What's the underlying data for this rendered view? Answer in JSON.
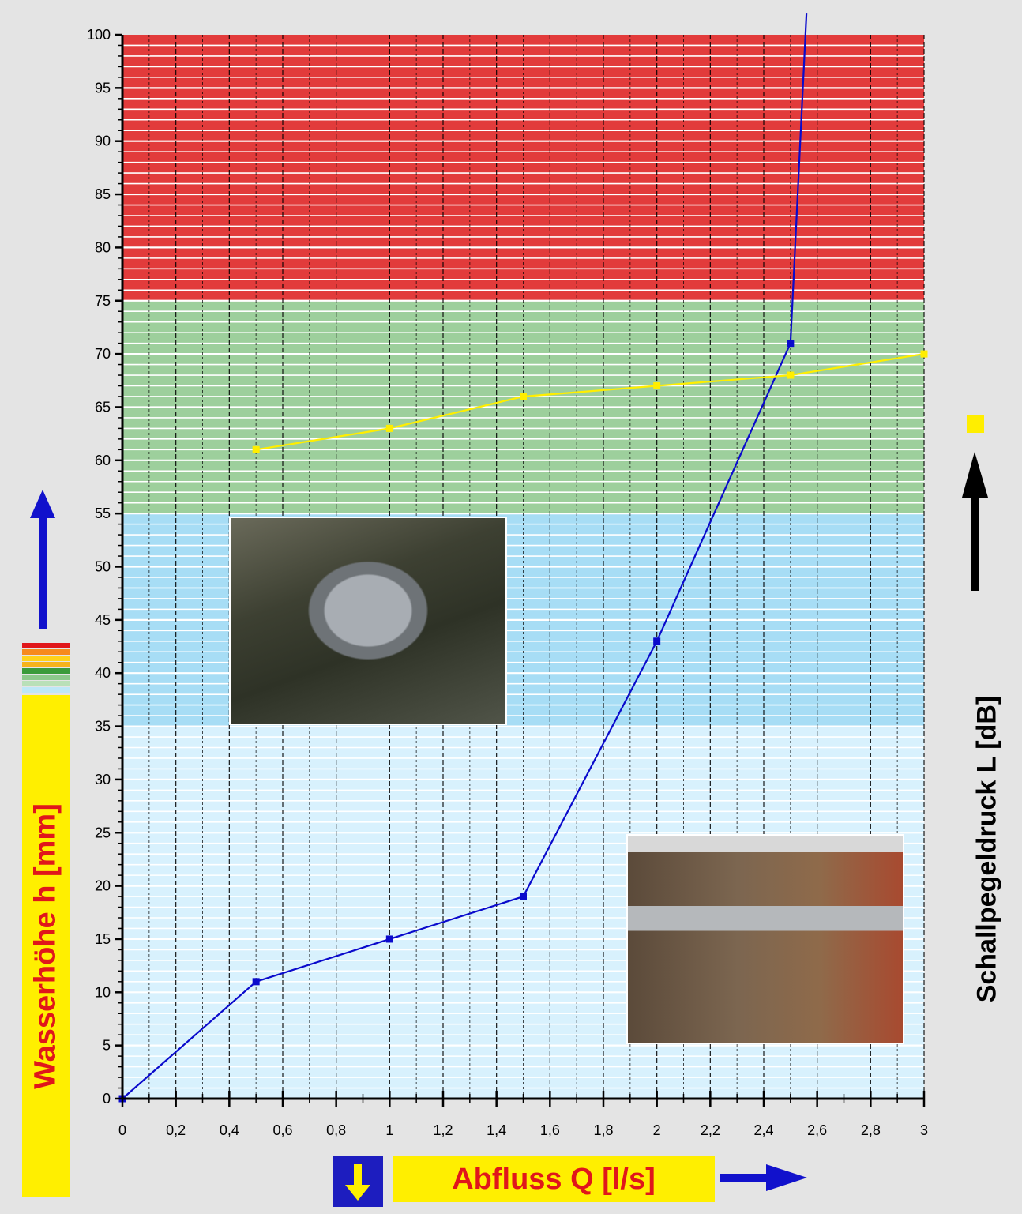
{
  "colors": {
    "zone_red": "#e23b3b",
    "zone_green": "#9dcf9c",
    "zone_blue": "#a7ddf5",
    "zone_lightblue": "#d8f1fd",
    "water_line": "#0a0acc",
    "sound_line": "#ffee00",
    "label_red": "#e0161b",
    "label_yellow": "#ffef00"
  },
  "chart_data": {
    "type": "line",
    "xlabel": "Abfluss Q [l/s]",
    "ylabel": "Wasserhöhe h [mm]",
    "y2label": "Schallpegeldruck L [dB]",
    "xlim": [
      0,
      3
    ],
    "ylim": [
      0,
      100
    ],
    "x_ticks": [
      "0",
      "0,2",
      "0,4",
      "0,6",
      "0,8",
      "1",
      "1,2",
      "1,4",
      "1,6",
      "1,8",
      "2",
      "2,2",
      "2,4",
      "2,6",
      "2,8",
      "3"
    ],
    "y_ticks": [
      "0",
      "5",
      "10",
      "15",
      "20",
      "25",
      "30",
      "35",
      "40",
      "45",
      "50",
      "55",
      "60",
      "65",
      "70",
      "75",
      "80",
      "85",
      "90",
      "95",
      "100"
    ],
    "zones": [
      {
        "from": 75,
        "to": 100,
        "color": "red"
      },
      {
        "from": 55,
        "to": 75,
        "color": "green"
      },
      {
        "from": 35,
        "to": 55,
        "color": "blue"
      },
      {
        "from": 0,
        "to": 35,
        "color": "lightblue"
      }
    ],
    "grid": true,
    "series": [
      {
        "color": "blue",
        "marker": "square",
        "x": [
          0,
          0.5,
          1,
          1.5,
          2,
          2.5,
          2.56
        ],
        "y": [
          0,
          11,
          15,
          19,
          43,
          71,
          102
        ]
      },
      {
        "color": "yellow",
        "marker": "square",
        "x": [
          0.5,
          1,
          1.5,
          2,
          2.5,
          3
        ],
        "y": [
          61,
          63,
          66,
          67,
          68,
          70
        ]
      }
    ]
  }
}
